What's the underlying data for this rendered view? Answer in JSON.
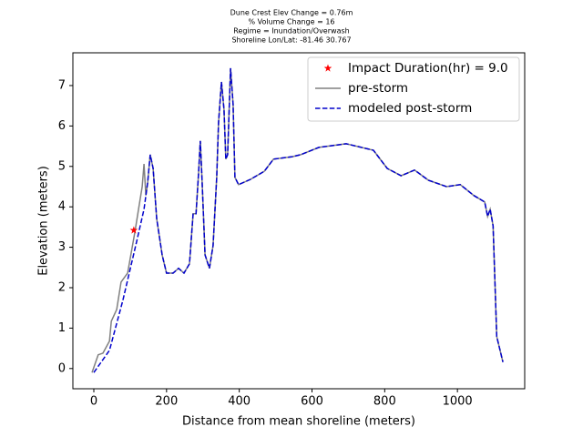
{
  "chart_data": {
    "type": "line",
    "title": [
      "Dune Crest Elev Change = 0.76m",
      "% Volume Change = 16",
      "Regime = Inundation/Overwash",
      "Shoreline Lon/Lat: -81.46 30.767"
    ],
    "x_label": "Distance from mean shoreline (meters)",
    "y_label": "Elevation (meters)",
    "xlim": [
      -57.6,
      1185
    ],
    "ylim": [
      -0.5,
      7.81
    ],
    "xticks": [
      0,
      200,
      400,
      600,
      800,
      1000
    ],
    "yticks": [
      0,
      1,
      2,
      3,
      4,
      5,
      6,
      7
    ],
    "legend": "upper right",
    "series": [
      {
        "name": "Impact Duration(hr) = 9.0",
        "color": "#ff0000",
        "marker": "star",
        "x": [
          110
        ],
        "values": [
          3.42
        ]
      },
      {
        "name": "pre-storm",
        "color": "#808080",
        "style": "solid",
        "x": [
          -5,
          12,
          25,
          43,
          48,
          63,
          75,
          93,
          113,
          123,
          133,
          138,
          143,
          148,
          155,
          163,
          173,
          188,
          200,
          218,
          233,
          248,
          263,
          273,
          281,
          288,
          293,
          298,
          306,
          318,
          328,
          338,
          343,
          351,
          358,
          363,
          368,
          376,
          383,
          388,
          398,
          431,
          469,
          494,
          546,
          569,
          619,
          694,
          769,
          807,
          845,
          882,
          920,
          970,
          1008,
          1045,
          1075,
          1083,
          1090,
          1098,
          1108,
          1125
        ],
        "values": [
          -0.1,
          0.34,
          0.38,
          0.68,
          1.17,
          1.46,
          2.14,
          2.36,
          3.38,
          3.94,
          4.5,
          5.06,
          4.28,
          4.6,
          5.29,
          4.95,
          3.71,
          2.81,
          2.36,
          2.36,
          2.48,
          2.36,
          2.59,
          3.83,
          3.83,
          4.84,
          5.63,
          4.61,
          2.81,
          2.48,
          3.04,
          4.73,
          6.08,
          7.09,
          6.41,
          5.18,
          5.29,
          7.43,
          6.53,
          4.73,
          4.55,
          4.68,
          4.88,
          5.18,
          5.24,
          5.29,
          5.47,
          5.56,
          5.4,
          4.95,
          4.77,
          4.91,
          4.66,
          4.5,
          4.55,
          4.28,
          4.12,
          3.76,
          3.94,
          3.53,
          0.79,
          0.16
        ]
      },
      {
        "name": "modeled post-storm",
        "color": "#0000cc",
        "style": "dashed",
        "x": [
          0,
          43,
          80,
          118,
          138,
          148,
          155,
          163,
          173,
          188,
          200,
          218,
          233,
          248,
          263,
          273,
          281,
          288,
          293,
          298,
          306,
          318,
          328,
          338,
          343,
          351,
          358,
          363,
          368,
          376,
          383,
          388,
          398,
          431,
          469,
          494,
          546,
          569,
          619,
          694,
          769,
          807,
          845,
          882,
          920,
          970,
          1008,
          1045,
          1075,
          1083,
          1090,
          1098,
          1108,
          1125
        ],
        "values": [
          -0.1,
          0.45,
          1.69,
          3.15,
          3.94,
          4.6,
          5.29,
          4.95,
          3.71,
          2.81,
          2.36,
          2.36,
          2.48,
          2.36,
          2.59,
          3.83,
          3.83,
          4.84,
          5.63,
          4.61,
          2.81,
          2.48,
          3.04,
          4.73,
          6.08,
          7.09,
          6.41,
          5.18,
          5.29,
          7.43,
          6.53,
          4.73,
          4.55,
          4.68,
          4.88,
          5.18,
          5.24,
          5.29,
          5.47,
          5.56,
          5.4,
          4.95,
          4.77,
          4.91,
          4.66,
          4.5,
          4.55,
          4.28,
          4.12,
          3.76,
          3.94,
          3.53,
          0.79,
          0.16
        ]
      }
    ]
  }
}
